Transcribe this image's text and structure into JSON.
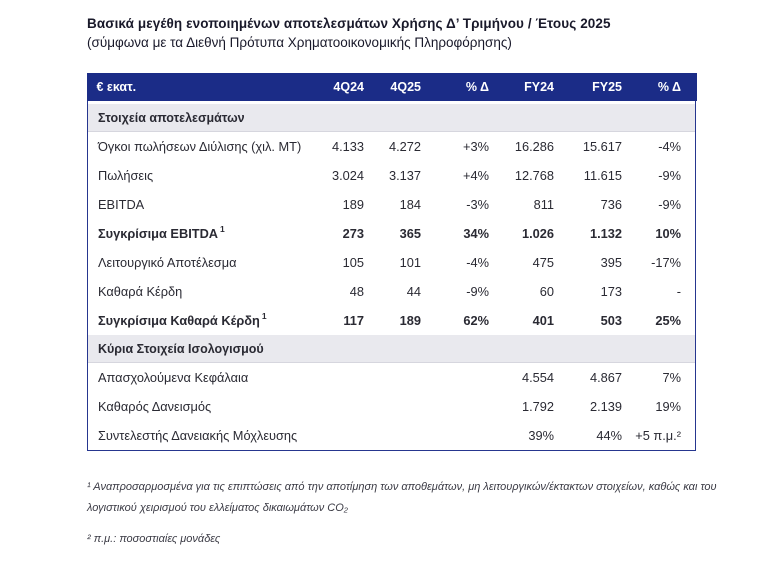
{
  "page": {
    "title": "Βασικά μεγέθη ενοποιημένων αποτελεσμάτων Χρήσης Δ’ Τριμήνου / Έτους 2025",
    "subtitle": "(σύμφωνα με τα Διεθνή Πρότυπα Χρηματοοικονομικής Πληροφόρησης)"
  },
  "table": {
    "unit_label": "€ εκατ.",
    "columns": [
      "4Q24",
      "4Q25",
      "% Δ",
      "FY24",
      "FY25",
      "% Δ"
    ],
    "sections": [
      {
        "title": "Στοιχεία αποτελεσμάτων",
        "rows": [
          {
            "label": "Όγκοι πωλήσεων Διύλισης (χιλ. ΜΤ)",
            "sup": "",
            "bold": false,
            "values": [
              "4.133",
              "4.272",
              "+3%",
              "16.286",
              "15.617",
              "-4%"
            ]
          },
          {
            "label": "Πωλήσεις",
            "sup": "",
            "bold": false,
            "values": [
              "3.024",
              "3.137",
              "+4%",
              "12.768",
              "11.615",
              "-9%"
            ]
          },
          {
            "label": "EBITDA",
            "sup": "",
            "bold": false,
            "values": [
              "189",
              "184",
              "-3%",
              "811",
              "736",
              "-9%"
            ]
          },
          {
            "label": "Συγκρίσιμα EBITDA",
            "sup": "1",
            "bold": true,
            "values": [
              "273",
              "365",
              "34%",
              "1.026",
              "1.132",
              "10%"
            ]
          },
          {
            "label": "Λειτουργικό Αποτέλεσμα",
            "sup": "",
            "bold": false,
            "values": [
              "105",
              "101",
              "-4%",
              "475",
              "395",
              "-17%"
            ]
          },
          {
            "label": "Καθαρά Κέρδη",
            "sup": "",
            "bold": false,
            "values": [
              "48",
              "44",
              "-9%",
              "60",
              "173",
              "-"
            ]
          },
          {
            "label": "Συγκρίσιμα Καθαρά Κέρδη",
            "sup": "1",
            "bold": true,
            "values": [
              "117",
              "189",
              "62%",
              "401",
              "503",
              "25%"
            ]
          }
        ]
      },
      {
        "title": "Κύρια Στοιχεία Ισολογισμού",
        "rows": [
          {
            "label": "Απασχολούμενα Κεφάλαια",
            "sup": "",
            "bold": false,
            "values": [
              "",
              "",
              "",
              "4.554",
              "4.867",
              "7%"
            ]
          },
          {
            "label": "Καθαρός Δανεισμός",
            "sup": "",
            "bold": false,
            "values": [
              "",
              "",
              "",
              "1.792",
              "2.139",
              "19%"
            ]
          },
          {
            "label": "Συντελεστής Δανειακής Μόχλευσης",
            "sup": "",
            "bold": false,
            "values": [
              "",
              "",
              "",
              "39%",
              "44%",
              "+5 π.μ.²"
            ]
          }
        ]
      }
    ]
  },
  "footnotes": [
    "¹ Αναπροσαρμοσμένα για τις επιπτώσεις από την αποτίμηση των αποθεμάτων, μη λειτουργικών/έκτακτων στοιχείων, καθώς και του λογιστικού χειρισμού του ελλείματος δικαιωμάτων CO₂",
    "² π.μ.: ποσοστιαίες μονάδες"
  ],
  "colors": {
    "header_background": "#1b2c87",
    "table_border": "#26368f",
    "section_background": "#e9e9ee",
    "body_text": "#2a2a33"
  }
}
